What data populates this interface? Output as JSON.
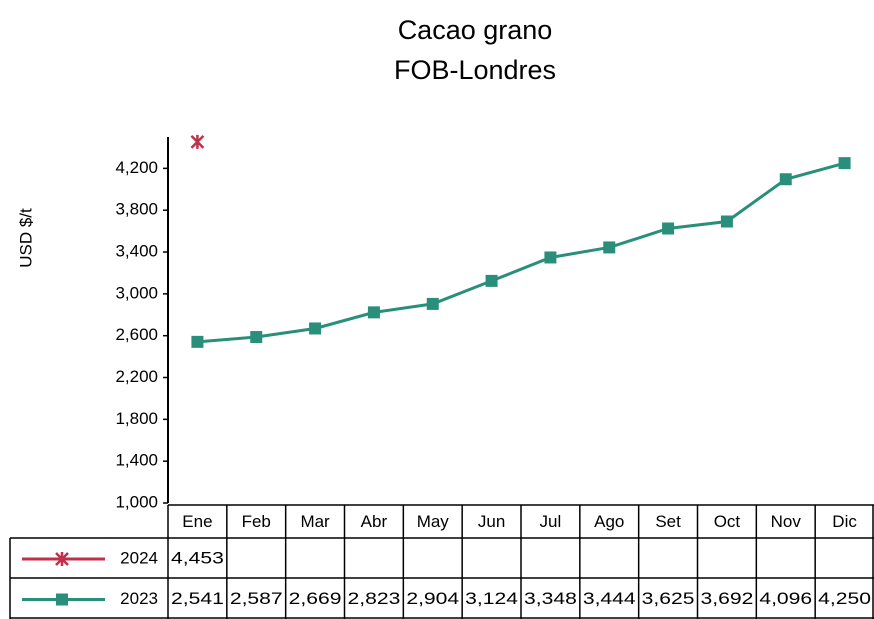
{
  "chart_data": {
    "type": "line",
    "title": "Cacao grano",
    "subtitle": "FOB-Londres",
    "y_label": "USD $/t",
    "categories": [
      "Ene",
      "Feb",
      "Mar",
      "Abr",
      "May",
      "Jun",
      "Jul",
      "Ago",
      "Set",
      "Oct",
      "Nov",
      "Dic"
    ],
    "series": [
      {
        "name": "2024",
        "color": "#c0304a",
        "marker": "star",
        "values": [
          4453,
          null,
          null,
          null,
          null,
          null,
          null,
          null,
          null,
          null,
          null,
          null
        ],
        "value_labels": [
          "4,453",
          null,
          null,
          null,
          null,
          null,
          null,
          null,
          null,
          null,
          null,
          null
        ]
      },
      {
        "name": "2023",
        "color": "#2a8f7a",
        "marker": "square",
        "values": [
          2541,
          2587,
          2669,
          2823,
          2904,
          3124,
          3348,
          3444,
          3625,
          3692,
          4096,
          4250
        ],
        "value_labels": [
          "2,541",
          "2,587",
          "2,669",
          "2,823",
          "2,904",
          "3,124",
          "3,348",
          "3,444",
          "3,625",
          "3,692",
          "4,096",
          "4,250"
        ]
      }
    ],
    "ylim": [
      1000,
      4500
    ],
    "yticks": [
      {
        "value": 1000,
        "label": "1,000"
      },
      {
        "value": 1400,
        "label": "1,400"
      },
      {
        "value": 1800,
        "label": "1,800"
      },
      {
        "value": 2200,
        "label": "2,200"
      },
      {
        "value": 2600,
        "label": "2,600"
      },
      {
        "value": 3000,
        "label": "3,000"
      },
      {
        "value": 3400,
        "label": "3,400"
      },
      {
        "value": 3800,
        "label": "3,800"
      },
      {
        "value": 4200,
        "label": "4,200"
      }
    ],
    "grid": false
  }
}
